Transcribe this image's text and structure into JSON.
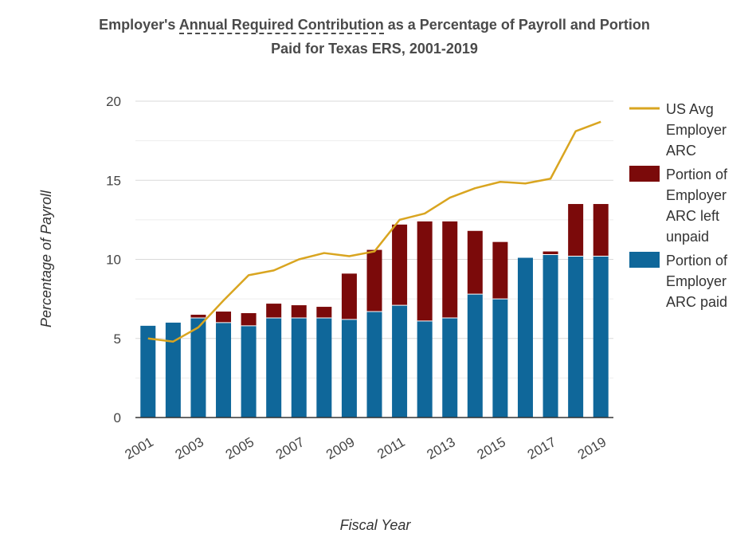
{
  "title": {
    "prefix": "Employer's ",
    "abbr": "Annual Required Contribution",
    "suffix": " as a Percentage of Payroll and Portion",
    "line2": "Paid for Texas ERS, 2001-2019"
  },
  "colors": {
    "paid": "#0f679a",
    "unpaid": "#7b0a0a",
    "us_avg": "#d9a520",
    "grid": "#d9d9d9",
    "axis": "#333333"
  },
  "chart_data": {
    "type": "bar",
    "stacked": true,
    "xlabel": "Fiscal Year",
    "ylabel": "Percentage of Payroll",
    "ylim": [
      0,
      20
    ],
    "yticks": [
      0,
      5,
      10,
      15,
      20
    ],
    "x": [
      2001,
      2002,
      2003,
      2004,
      2005,
      2006,
      2007,
      2008,
      2009,
      2010,
      2011,
      2012,
      2013,
      2014,
      2015,
      2016,
      2017,
      2018,
      2019
    ],
    "xtick_labels": [
      "2001",
      "2003",
      "2005",
      "2007",
      "2009",
      "2011",
      "2013",
      "2015",
      "2017",
      "2019"
    ],
    "grid": true,
    "legend_position": "right",
    "series": [
      {
        "name": "Portion of Employer ARC paid",
        "kind": "bar",
        "values": [
          5.8,
          6.0,
          6.3,
          6.0,
          5.8,
          6.3,
          6.3,
          6.3,
          6.2,
          6.7,
          7.1,
          6.1,
          6.3,
          7.8,
          7.5,
          10.1,
          10.3,
          10.2,
          10.2
        ]
      },
      {
        "name": "Portion of Employer ARC left unpaid",
        "kind": "bar",
        "values": [
          0.0,
          0.0,
          0.2,
          0.7,
          0.8,
          0.9,
          0.8,
          0.7,
          2.9,
          3.9,
          5.1,
          6.3,
          6.1,
          4.0,
          3.6,
          0.0,
          0.2,
          3.3,
          3.3
        ]
      },
      {
        "name": "US Avg Employer ARC",
        "kind": "line",
        "values": [
          5.0,
          4.8,
          5.7,
          7.4,
          9.0,
          9.3,
          10.0,
          10.4,
          10.2,
          10.5,
          12.5,
          12.9,
          13.9,
          14.5,
          14.9,
          14.8,
          15.1,
          18.1,
          18.7
        ]
      }
    ]
  },
  "legend": [
    {
      "key": "us_avg",
      "lines": [
        "US Avg",
        "Employer",
        "ARC"
      ]
    },
    {
      "key": "unpaid",
      "lines": [
        "Portion of",
        "Employer",
        "ARC left",
        "unpaid"
      ]
    },
    {
      "key": "paid",
      "lines": [
        "Portion of",
        "Employer",
        "ARC paid"
      ]
    }
  ]
}
